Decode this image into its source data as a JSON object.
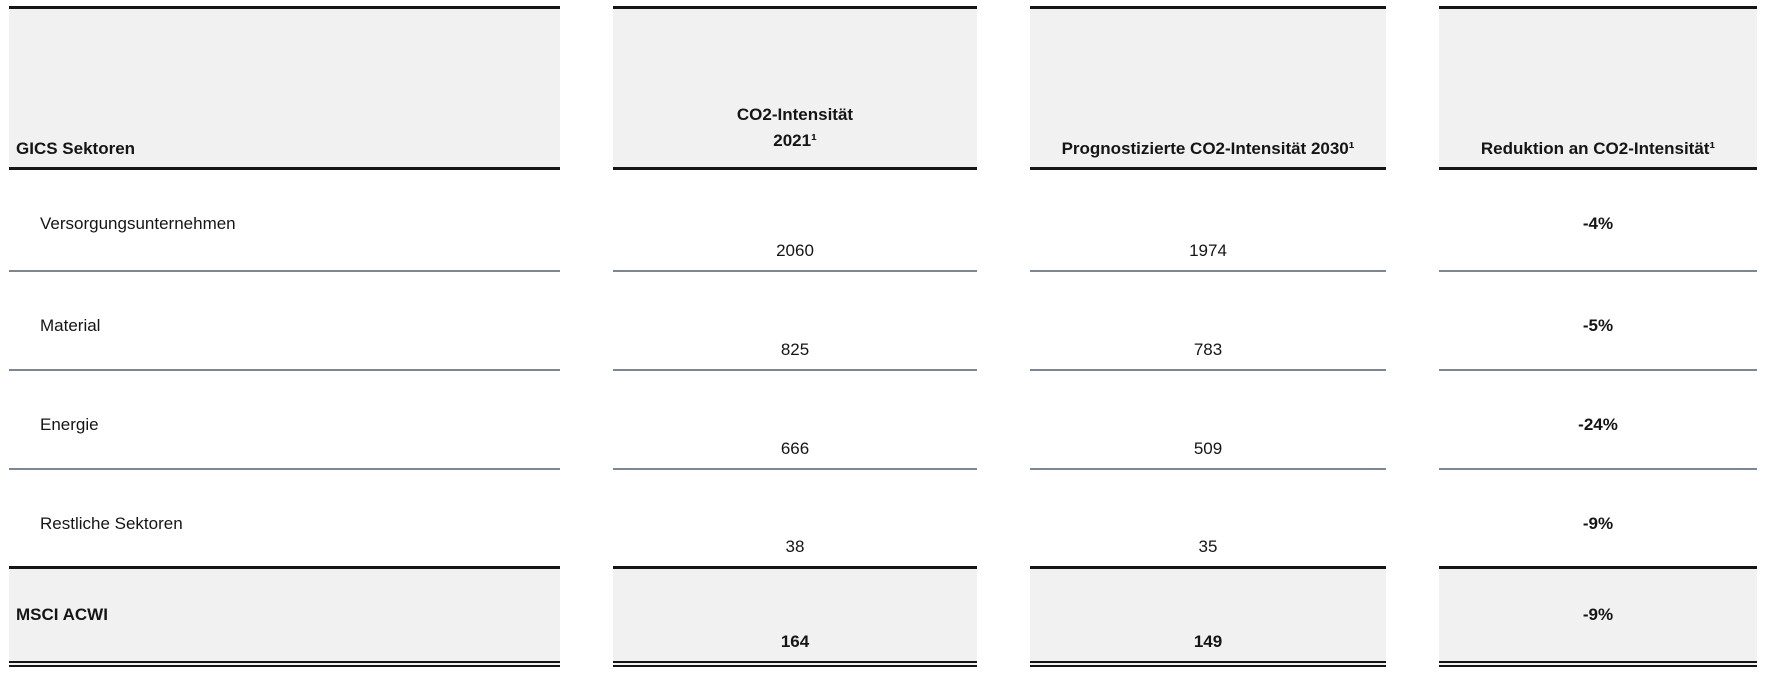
{
  "table": {
    "columns": [
      {
        "header": "GICS Sektoren"
      },
      {
        "header_line1": "CO2-Intensität",
        "header_line2": "2021¹"
      },
      {
        "header": "Prognostizierte CO2-Intensität 2030¹"
      },
      {
        "header": "Reduktion an CO2-Intensität¹"
      }
    ],
    "rows": [
      {
        "sector": "Versorgungsunternehmen",
        "intensity_2021": "2060",
        "intensity_2030": "1974",
        "reduction": "-4%"
      },
      {
        "sector": "Material",
        "intensity_2021": "825",
        "intensity_2030": "783",
        "reduction": "-5%"
      },
      {
        "sector": "Energie",
        "intensity_2021": "666",
        "intensity_2030": "509",
        "reduction": "-24%"
      },
      {
        "sector": "Restliche Sektoren",
        "intensity_2021": "38",
        "intensity_2030": "35",
        "reduction": "-9%"
      }
    ],
    "footer": {
      "label": "MSCI ACWI",
      "intensity_2021": "164",
      "intensity_2030": "149",
      "reduction": "-9%"
    }
  },
  "colors": {
    "header_background": "#f1f1f1",
    "strong_border": "#151515",
    "row_separator": "#7b8794",
    "text": "#151515"
  }
}
